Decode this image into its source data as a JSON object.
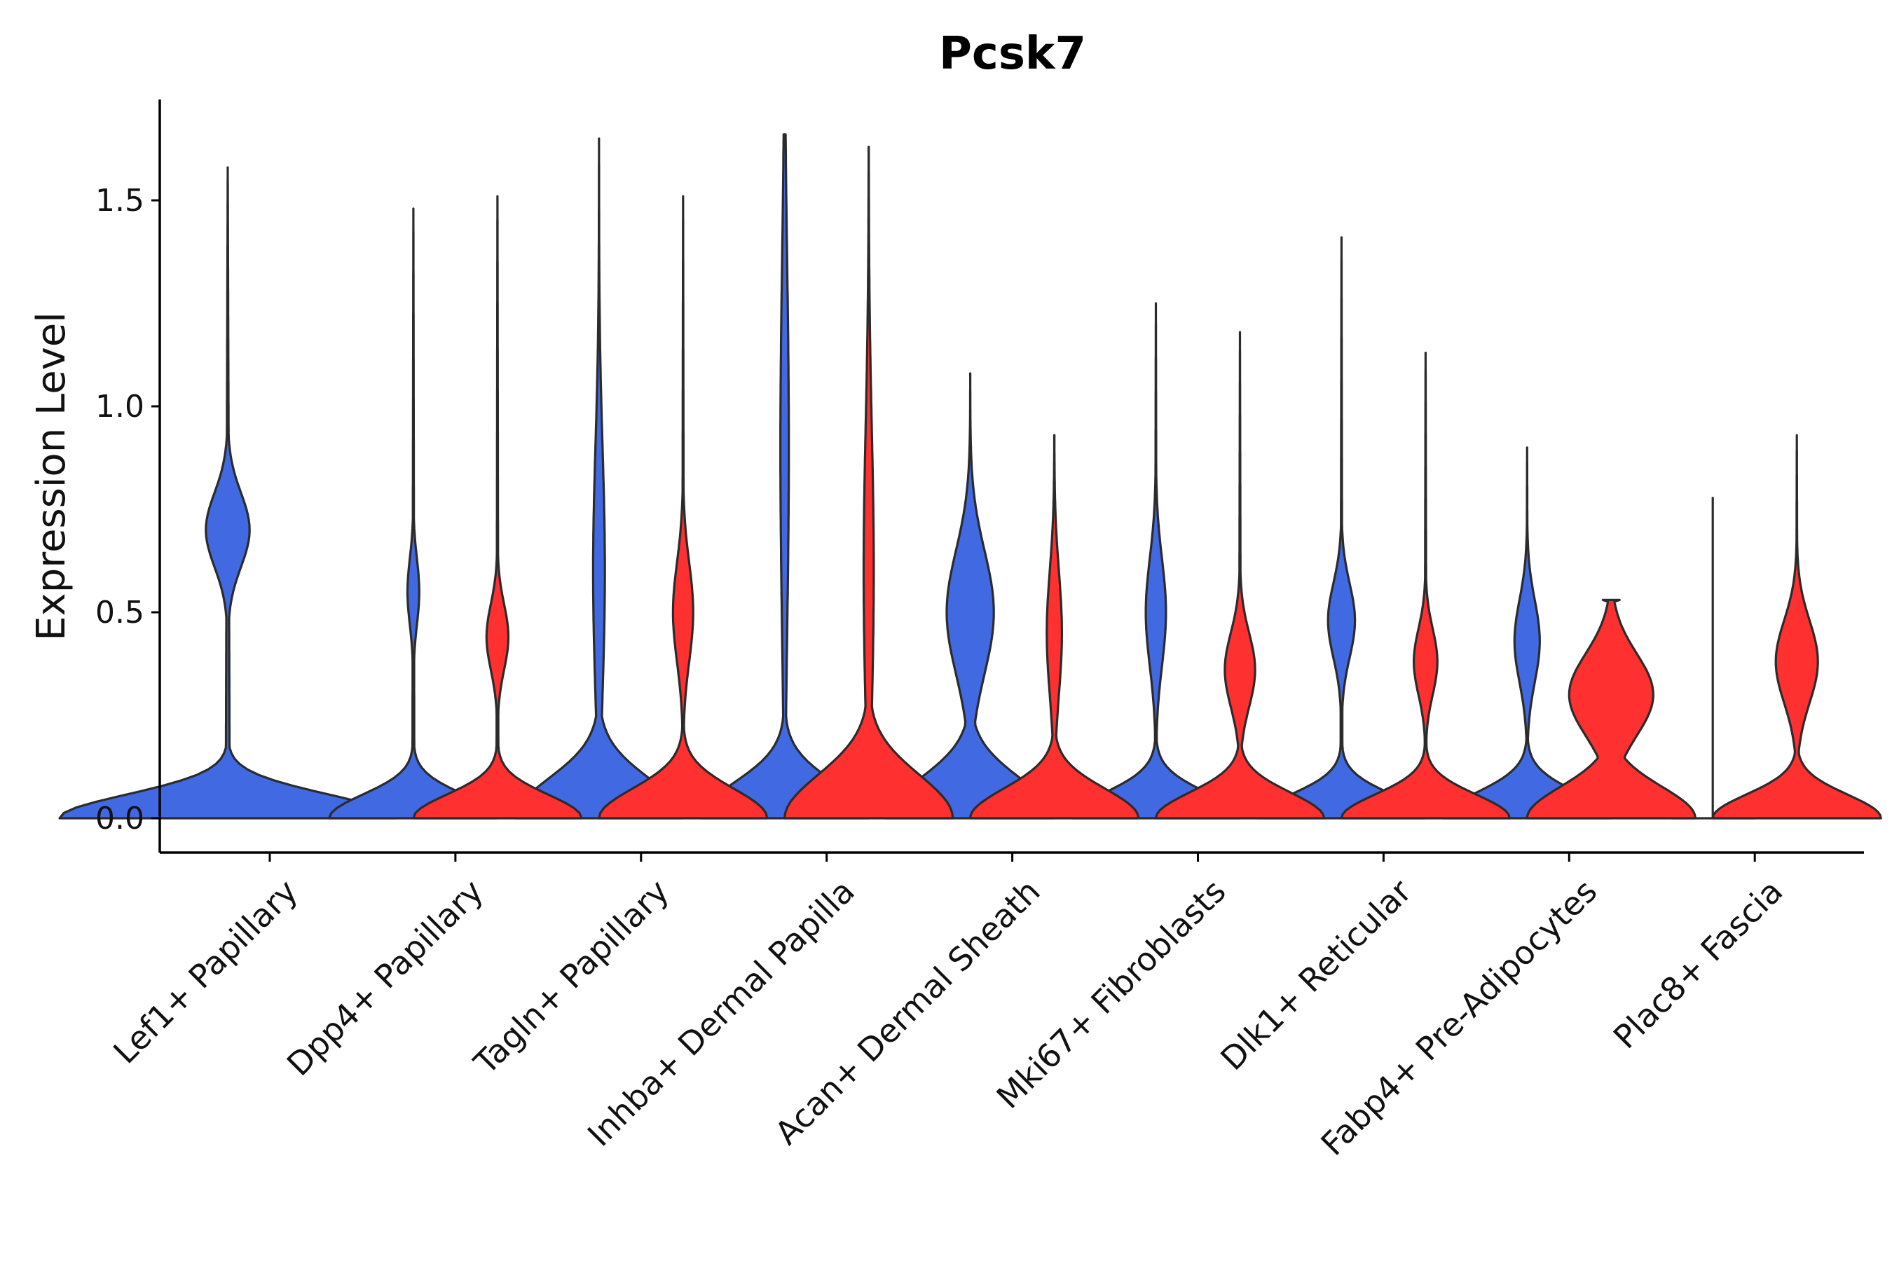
{
  "chart_data": {
    "type": "violin",
    "title": "Pcsk7",
    "xlabel": "",
    "ylabel": "Expression Level",
    "ylim": [
      -0.08,
      1.75
    ],
    "yticks": [
      0.0,
      0.5,
      1.0,
      1.5
    ],
    "ytick_labels": [
      "0.0",
      "0.5",
      "1.0",
      "1.5"
    ],
    "categories": [
      "Lef1+ Papillary",
      "Dpp4+ Papillary",
      "Tagln+ Papillary",
      "Inhba+ Dermal Papilla",
      "Acan+ Dermal Sheath",
      "Mki67+ Fibroblasts",
      "Dlk1+ Reticular",
      "Fabp4+ Pre-Adipocytes",
      "Plac8+ Fascia"
    ],
    "series": [
      {
        "name": "group 1",
        "color": "#4169E1",
        "violins": [
          {
            "max": 1.58,
            "width": 1.0,
            "zero_width": 1.0,
            "zero_height": 0.12,
            "modes": [
              {
                "y": 0.7,
                "w": 0.13,
                "s": 0.09
              }
            ]
          },
          {
            "max": 1.48,
            "width": 0.5,
            "zero_width": 1.0,
            "zero_height": 0.12,
            "modes": [
              {
                "y": 0.55,
                "w": 0.07,
                "s": 0.08
              }
            ]
          },
          {
            "max": 1.65,
            "width": 0.5,
            "zero_width": 1.0,
            "zero_height": 0.2,
            "modes": [
              {
                "y": 0.6,
                "w": 0.07,
                "s": 0.3
              }
            ]
          },
          {
            "max": 1.66,
            "width": 0.5,
            "zero_width": 1.0,
            "zero_height": 0.18,
            "modes": [
              {
                "y": 0.9,
                "w": 0.05,
                "s": 0.45
              }
            ]
          },
          {
            "max": 1.08,
            "width": 0.5,
            "zero_width": 1.0,
            "zero_height": 0.2,
            "modes": [
              {
                "y": 0.5,
                "w": 0.28,
                "s": 0.15
              }
            ]
          },
          {
            "max": 1.25,
            "width": 0.5,
            "zero_width": 1.0,
            "zero_height": 0.13,
            "modes": [
              {
                "y": 0.5,
                "w": 0.12,
                "s": 0.13
              }
            ]
          },
          {
            "max": 1.41,
            "width": 0.5,
            "zero_width": 1.0,
            "zero_height": 0.12,
            "modes": [
              {
                "y": 0.48,
                "w": 0.16,
                "s": 0.09
              }
            ]
          },
          {
            "max": 0.9,
            "width": 0.5,
            "zero_width": 1.0,
            "zero_height": 0.13,
            "modes": [
              {
                "y": 0.43,
                "w": 0.15,
                "s": 0.1
              }
            ]
          },
          {
            "max": 0.78,
            "width": 0.5,
            "zero_width": 0.0,
            "zero_height": 0.0,
            "modes": [],
            "flat": true
          }
        ]
      },
      {
        "name": "group 2",
        "color": "#FF3030",
        "violins": [
          null,
          {
            "max": 1.51,
            "width": 0.5,
            "zero_width": 1.0,
            "zero_height": 0.12,
            "modes": [
              {
                "y": 0.44,
                "w": 0.13,
                "s": 0.08
              }
            ]
          },
          {
            "max": 1.51,
            "width": 0.5,
            "zero_width": 1.0,
            "zero_height": 0.15,
            "modes": [
              {
                "y": 0.5,
                "w": 0.12,
                "s": 0.12
              }
            ]
          },
          {
            "max": 1.63,
            "width": 0.5,
            "zero_width": 1.0,
            "zero_height": 0.22,
            "modes": [
              {
                "y": 0.6,
                "w": 0.06,
                "s": 0.35
              }
            ]
          },
          {
            "max": 0.93,
            "width": 0.5,
            "zero_width": 1.0,
            "zero_height": 0.15,
            "modes": [
              {
                "y": 0.45,
                "w": 0.09,
                "s": 0.15
              }
            ]
          },
          {
            "max": 1.18,
            "width": 0.5,
            "zero_width": 1.0,
            "zero_height": 0.13,
            "modes": [
              {
                "y": 0.36,
                "w": 0.18,
                "s": 0.09
              }
            ]
          },
          {
            "max": 1.13,
            "width": 0.5,
            "zero_width": 1.0,
            "zero_height": 0.12,
            "modes": [
              {
                "y": 0.38,
                "w": 0.14,
                "s": 0.08
              }
            ]
          },
          {
            "max": 0.53,
            "width": 0.5,
            "zero_width": 1.0,
            "zero_height": 0.16,
            "modes": [
              {
                "y": 0.3,
                "w": 0.5,
                "s": 0.1
              }
            ],
            "truncated": true
          },
          {
            "max": 0.93,
            "width": 0.5,
            "zero_width": 1.0,
            "zero_height": 0.12,
            "modes": [
              {
                "y": 0.38,
                "w": 0.25,
                "s": 0.1
              }
            ]
          }
        ]
      }
    ]
  }
}
